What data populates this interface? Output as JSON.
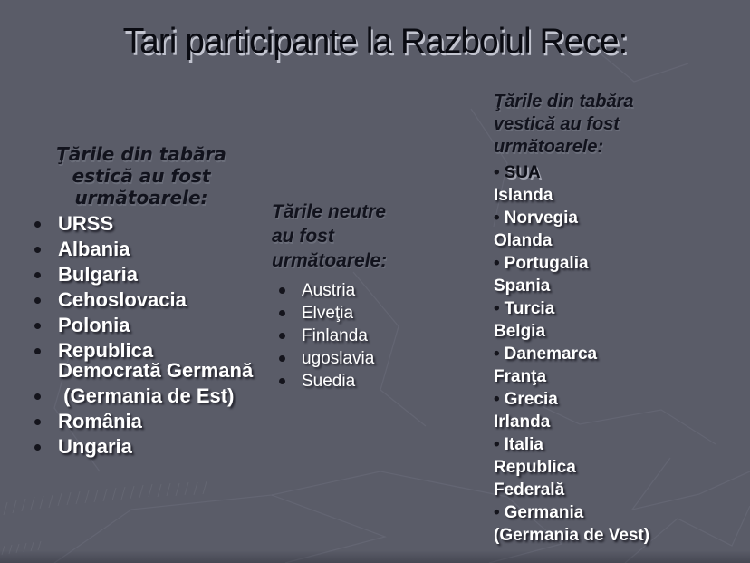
{
  "title": "Tari participante la Razboiul Rece:",
  "columns": {
    "east": {
      "heading_lines": [
        "Ţările din tabăra",
        "estică au fost",
        "următoarele:"
      ],
      "items": [
        "URSS",
        "Albania",
        "Bulgaria",
        "Cehoslovacia",
        "Polonia",
        "Republica Democrată Germană",
        " (Germania de Est)",
        "România",
        "Ungaria"
      ]
    },
    "neutral": {
      "heading_lines": [
        "Tările neutre",
        "au fost",
        "următoarele:"
      ],
      "items": [
        "Austria",
        "Elveţia",
        "Finlanda",
        "ugoslavia",
        "Suedia"
      ]
    },
    "west": {
      "heading_lines": [
        "Ţările din tabăra",
        "vestică au fost",
        "următoarele:"
      ],
      "items": [
        {
          "label": "SUA",
          "bullet": true,
          "tone": "dark"
        },
        {
          "label": "Islanda",
          "bullet": false,
          "tone": "light"
        },
        {
          "label": "Norvegia",
          "bullet": true,
          "tone": "light"
        },
        {
          "label": "Olanda",
          "bullet": false,
          "tone": "light"
        },
        {
          "label": "Portugalia",
          "bullet": true,
          "tone": "light"
        },
        {
          "label": "Spania",
          "bullet": false,
          "tone": "light"
        },
        {
          "label": "Turcia",
          "bullet": true,
          "tone": "light"
        },
        {
          "label": "Belgia",
          "bullet": false,
          "tone": "light"
        },
        {
          "label": "Danemarca",
          "bullet": true,
          "tone": "light"
        },
        {
          "label": "Franţa",
          "bullet": false,
          "tone": "light"
        },
        {
          "label": "Grecia",
          "bullet": true,
          "tone": "light"
        },
        {
          "label": "Irlanda",
          "bullet": false,
          "tone": "light"
        },
        {
          "label": "Italia",
          "bullet": true,
          "tone": "light"
        },
        {
          "label": "Republica",
          "bullet": false,
          "tone": "light"
        },
        {
          "label": "Federală",
          "bullet": false,
          "tone": "light"
        },
        {
          "label": "Germania",
          "bullet": true,
          "tone": "light"
        },
        {
          "label": "(Germania de Vest)",
          "bullet": false,
          "tone": "light"
        }
      ]
    }
  },
  "colors": {
    "background": "#5a5c68",
    "title_text": "#0a0b12",
    "heading_text": "#12131d",
    "list_text_light": "#ffffff",
    "list_text_dark": "#0e0f17",
    "bullet": "#14141c",
    "shadow_light": "#c2c4cf",
    "shadow_dark": "#191a22",
    "pattern_line": "#6b6e7b"
  }
}
